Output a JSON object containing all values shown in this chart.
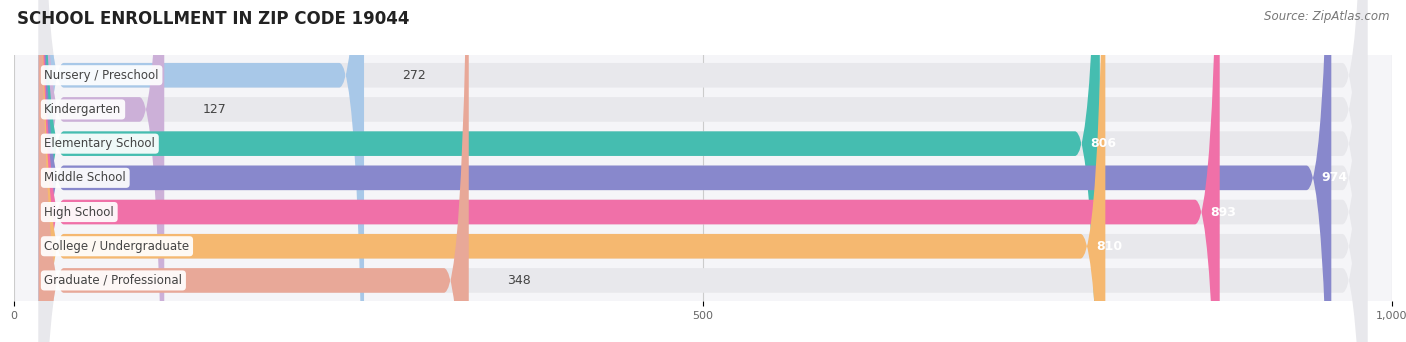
{
  "title": "SCHOOL ENROLLMENT IN ZIP CODE 19044",
  "source": "Source: ZipAtlas.com",
  "categories": [
    "Nursery / Preschool",
    "Kindergarten",
    "Elementary School",
    "Middle School",
    "High School",
    "College / Undergraduate",
    "Graduate / Professional"
  ],
  "values": [
    272,
    127,
    806,
    974,
    893,
    810,
    348
  ],
  "bar_colors": [
    "#a8c8e8",
    "#ccb0d8",
    "#45bdb0",
    "#8888cc",
    "#f070a8",
    "#f5b870",
    "#e8a898"
  ],
  "bg_bar_color": "#e8e8ec",
  "xlim": [
    0,
    1000
  ],
  "xticks": [
    0,
    500,
    1000
  ],
  "xtick_labels": [
    "0",
    "500",
    "1,000"
  ],
  "label_color_dark": "#444444",
  "label_color_white": "#ffffff",
  "value_threshold_white": 500,
  "bar_height": 0.72,
  "background_color": "#ffffff",
  "plot_bg_color": "#f5f5f8",
  "title_fontsize": 12,
  "source_fontsize": 8.5,
  "label_fontsize": 8.5,
  "value_fontsize": 9
}
